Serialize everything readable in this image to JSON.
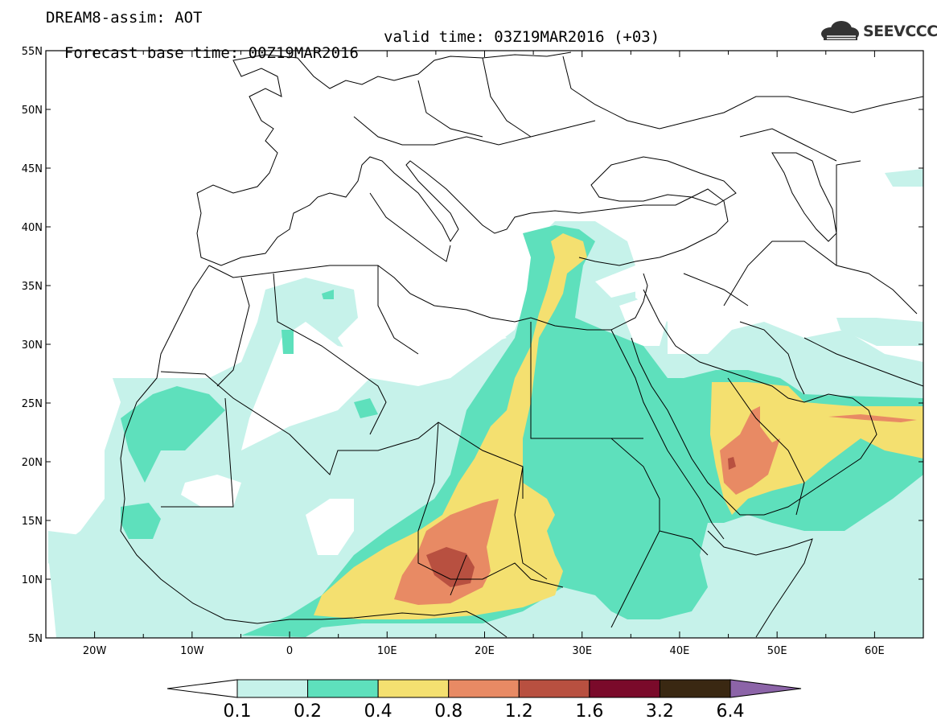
{
  "header": {
    "title": "DREAM8-assim: AOT",
    "base_time": "Forecast base time: 00Z19MAR2016",
    "valid_time": "valid time: 03Z19MAR2016 (+03)"
  },
  "logo": {
    "text": "SEEVCCC",
    "icon": "cloud-icon"
  },
  "map": {
    "lon_range": [
      -25,
      65
    ],
    "lat_range": [
      5,
      55
    ],
    "lat_labels": [
      "5N",
      "10N",
      "15N",
      "20N",
      "25N",
      "30N",
      "35N",
      "40N",
      "45N",
      "50N",
      "55N"
    ],
    "lon_labels": [
      "20W",
      "10W",
      "0",
      "10E",
      "20E",
      "30E",
      "40E",
      "50E",
      "60E"
    ],
    "lon_label_values": [
      -20,
      -10,
      0,
      10,
      20,
      30,
      40,
      50,
      60
    ],
    "lat_label_values": [
      5,
      10,
      15,
      20,
      25,
      30,
      35,
      40,
      45,
      50,
      55
    ]
  },
  "colorbar": {
    "labels": [
      "0.1",
      "0.2",
      "0.4",
      "0.8",
      "1.2",
      "1.6",
      "3.2",
      "6.4"
    ],
    "colors": [
      "#c6f2ea",
      "#5ee0bc",
      "#f4e070",
      "#e88a64",
      "#b85040",
      "#7a0a2a",
      "#3a2812",
      "#8c64a8"
    ]
  }
}
